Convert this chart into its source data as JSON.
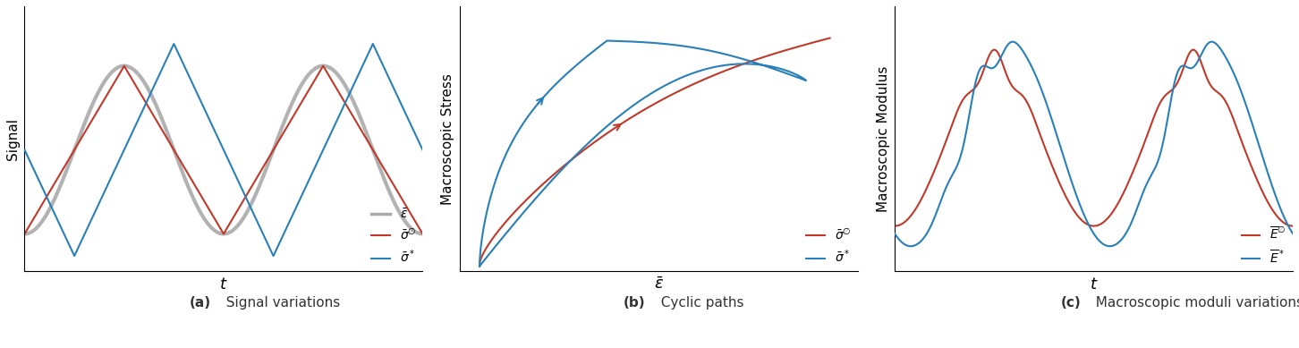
{
  "fig_width": 14.52,
  "fig_height": 3.89,
  "dpi": 100,
  "bg_color": "#ffffff",
  "red_color": "#c0392b",
  "blue_color": "#2980b9",
  "gray_color": "#aaaaaa",
  "caption_a": "(a)  Signal variations",
  "caption_b": "(b)  Cyclic paths",
  "caption_c": "(c)  Macroscopic moduli variations",
  "panel_a": {
    "ylabel": "Signal",
    "xlabel": "t"
  },
  "panel_b": {
    "ylabel": "Macroscopic Stress",
    "xlabel": "$\\bar{\\epsilon}$"
  },
  "panel_c": {
    "ylabel": "Macroscopic Modulus",
    "xlabel": "t"
  }
}
